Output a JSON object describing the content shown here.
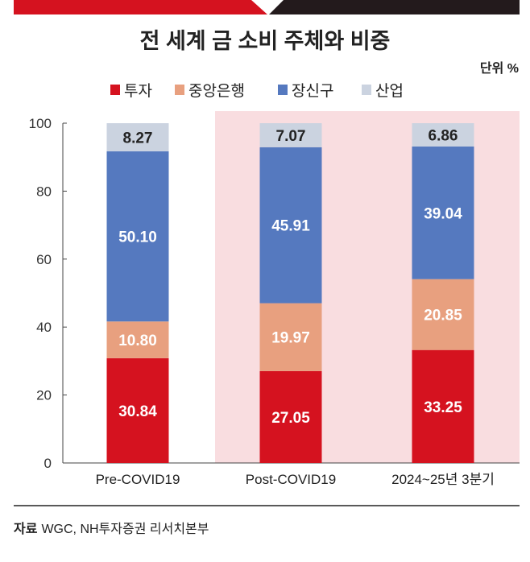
{
  "chart_data": {
    "type": "bar",
    "stacked": true,
    "title": "전 세계 금 소비 주체와 비중",
    "unit_label": "단위 %",
    "categories": [
      "Pre-COVID19",
      "Post-COVID19",
      "2024~25년 3분기"
    ],
    "series": [
      {
        "name": "투자",
        "color": "#d5121f",
        "values": [
          30.84,
          27.05,
          33.25
        ],
        "labels": [
          "30.84",
          "27.05",
          "33.25"
        ]
      },
      {
        "name": "중앙은행",
        "color": "#e8a07f",
        "values": [
          10.8,
          19.97,
          20.85
        ],
        "labels": [
          "10.80",
          "19.97",
          "20.85"
        ]
      },
      {
        "name": "장신구",
        "color": "#5579bf",
        "values": [
          50.1,
          45.91,
          39.04
        ],
        "labels": [
          "50.10",
          "45.91",
          "39.04"
        ]
      },
      {
        "name": "산업",
        "color": "#cbd3e0",
        "values": [
          8.27,
          7.07,
          6.86
        ],
        "labels": [
          "8.27",
          "7.07",
          "6.86"
        ]
      }
    ],
    "ylim": [
      0,
      100
    ],
    "yticks": [
      0,
      20,
      40,
      60,
      80,
      100
    ],
    "highlighted_categories": [
      "Post-COVID19",
      "2024~25년 3분기"
    ],
    "highlight_color": "#f9dde0",
    "legend_position": "top"
  },
  "source": {
    "label": "자료",
    "text": "WGC, NH투자증권 리서치본부"
  }
}
